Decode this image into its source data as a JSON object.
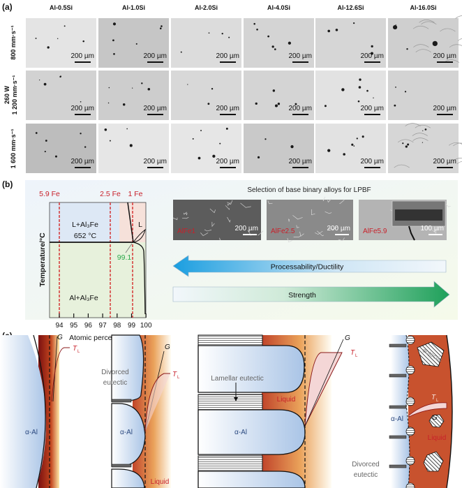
{
  "panel_labels": {
    "a": "(a)",
    "b": "(b)",
    "c": "(c)"
  },
  "panel_a": {
    "columns": [
      "Al-0.5Si",
      "Al-1.0Si",
      "Al-2.0Si",
      "Al-4.0Si",
      "Al-12.6Si",
      "Al-16.0Si"
    ],
    "row_labels": [
      "800 mm·s⁻¹",
      "1 200 mm·s⁻¹",
      "1 600 mm·s⁻¹"
    ],
    "power_label": "260 W",
    "scale_bar": "200 µm"
  },
  "panel_b": {
    "composition_labels": [
      "5.9 Fe",
      "2.5 Fe",
      "1 Fe"
    ],
    "region_upper_left": "L+Al₃Fe",
    "region_liquid": "L",
    "eutectic_temperature": "652 °C",
    "eutectic_point": "99.1",
    "region_lower": "Al+Al₃Fe",
    "y_label": "Temperature/°C",
    "x_ticks": [
      "94",
      "95",
      "96",
      "97",
      "98",
      "99",
      "100"
    ],
    "x_label": "Atomic percent Al",
    "sem_title": "Selection of base binary alloys for LPBF",
    "sem_images": [
      {
        "label": "AlFe1",
        "scale": "200 µm"
      },
      {
        "label": "AlFe2.5",
        "scale": "200 µm"
      },
      {
        "label": "AlFe5.9",
        "scale": "100 µm"
      }
    ],
    "arrow_left_label": "Processability/Ductility",
    "arrow_right_label": "Strength",
    "colors": {
      "dashed": "#d42a2a",
      "eutectic_point": "#2aa84a",
      "arrow_blue": "#1a9ee0",
      "arrow_green": "#1ea05a"
    }
  },
  "panel_c": {
    "alpha_al": "α-Al",
    "gradient": "G",
    "liquidus": "T",
    "liquidus_sub": "L",
    "divorced_eutectic_1": "Divorced",
    "divorced_eutectic_2": "eutectic",
    "lamellar_eutectic": "Lamellar eutectic",
    "liquid": "Liquid",
    "eutectic": "eutectic"
  }
}
